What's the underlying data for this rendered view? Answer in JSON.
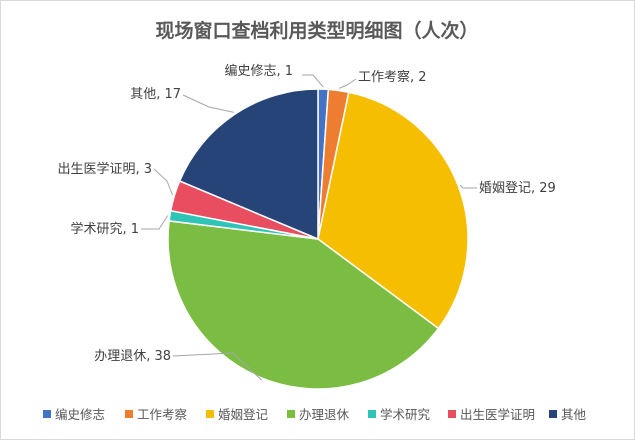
{
  "chart_data": {
    "type": "pie",
    "title": "现场窗口查档利用类型明细图（人次）",
    "categories": [
      "编史修志",
      "工作考察",
      "婚姻登记",
      "办理退休",
      "学术研究",
      "出生医学证明",
      "其他"
    ],
    "values": [
      1,
      2,
      29,
      38,
      1,
      3,
      17
    ],
    "data_labels": [
      "编史修志, 1",
      "工作考察, 2",
      "婚姻登记, 29",
      "办理退休, 38",
      "学术研究, 1",
      "出生医学证明, 3",
      "其他, 17"
    ],
    "colors": [
      "#4472C4",
      "#ED7D31",
      "#F5BE00",
      "#7BBD42",
      "#2EC4B6",
      "#E84D60",
      "#264478"
    ],
    "legend_position": "bottom",
    "start_angle_deg": 0,
    "direction": "clockwise"
  }
}
